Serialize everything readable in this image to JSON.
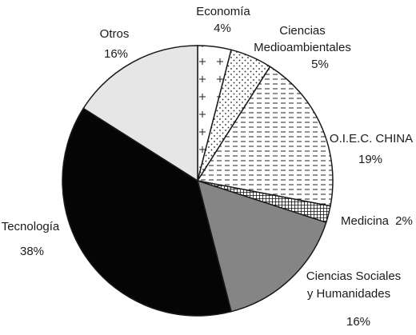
{
  "chart_data": {
    "type": "pie",
    "start": "top",
    "direction": "clockwise",
    "slices": [
      {
        "label": "Economía",
        "value": 4,
        "value_label": "4%",
        "fill": "cross-hatch-sparse",
        "color": "#ffffff"
      },
      {
        "label": "Ciencias Medioambientales",
        "value": 5,
        "value_label": "5%",
        "fill": "dots",
        "color": "#ffffff"
      },
      {
        "label": "O.I.E.C. CHINA",
        "value": 19,
        "value_label": "19%",
        "fill": "dashed-horizontal",
        "color": "#ffffff"
      },
      {
        "label": "Medicina",
        "value": 2,
        "value_label": "2%",
        "fill": "grid-dense",
        "color": "#111111"
      },
      {
        "label": "Ciencias Sociales y Humanidades",
        "value": 16,
        "value_label": "16%",
        "fill": "solid",
        "color": "#858585"
      },
      {
        "label": "Tecnología",
        "value": 38,
        "value_label": "38%",
        "fill": "solid",
        "color": "#050505"
      },
      {
        "label": "Otros",
        "value": 16,
        "value_label": "16%",
        "fill": "solid",
        "color": "#e6e6e6"
      }
    ],
    "labels": {
      "economia_name": "Economía",
      "economia_pct": "4%",
      "medio_line1": "Ciencias",
      "medio_line2": "Medioambientales",
      "medio_pct": "5%",
      "oiec_name": "O.I.E.C. CHINA",
      "oiec_pct": "19%",
      "medicina_name": "Medicina",
      "medicina_pct": "2%",
      "sociales_line1": "Ciencias Sociales",
      "sociales_line2": "y Humanidades",
      "sociales_pct": "16%",
      "tecnologia_name": "Tecnología",
      "tecnologia_pct": "38%",
      "otros_name": "Otros",
      "otros_pct": "16%"
    }
  }
}
